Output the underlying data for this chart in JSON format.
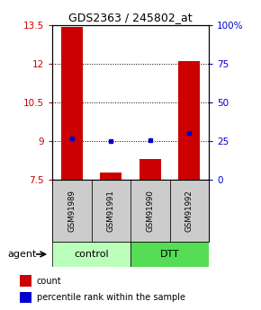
{
  "title": "GDS2363 / 245802_at",
  "samples": [
    "GSM91989",
    "GSM91991",
    "GSM91990",
    "GSM91992"
  ],
  "groups": [
    "control",
    "control",
    "DTT",
    "DTT"
  ],
  "group_labels": [
    "control",
    "DTT"
  ],
  "bar_bottom": 7.5,
  "red_bar_tops": [
    13.4,
    7.78,
    8.3,
    12.1
  ],
  "blue_square_values": [
    9.12,
    9.0,
    9.05,
    9.32
  ],
  "ylim_left": [
    7.5,
    13.5
  ],
  "ylim_right": [
    0,
    100
  ],
  "yticks_left": [
    7.5,
    9.0,
    10.5,
    12.0,
    13.5
  ],
  "ytick_labels_left": [
    "7.5",
    "9",
    "10.5",
    "12",
    "13.5"
  ],
  "yticks_right_vals": [
    0,
    25,
    50,
    75,
    100
  ],
  "ytick_labels_right": [
    "0",
    "25",
    "50",
    "75",
    "100%"
  ],
  "grid_yticks": [
    9.0,
    10.5,
    12.0
  ],
  "red_color": "#cc0000",
  "blue_color": "#0000cc",
  "bar_width": 0.55,
  "left_tick_color": "#cc0000",
  "right_tick_color": "#0000cc",
  "sample_box_color": "#cccccc",
  "group_box_color_control": "#bbffbb",
  "group_box_color_dtt": "#55dd55",
  "legend_red_label": "count",
  "legend_blue_label": "percentile rank within the sample",
  "agent_label": "agent"
}
